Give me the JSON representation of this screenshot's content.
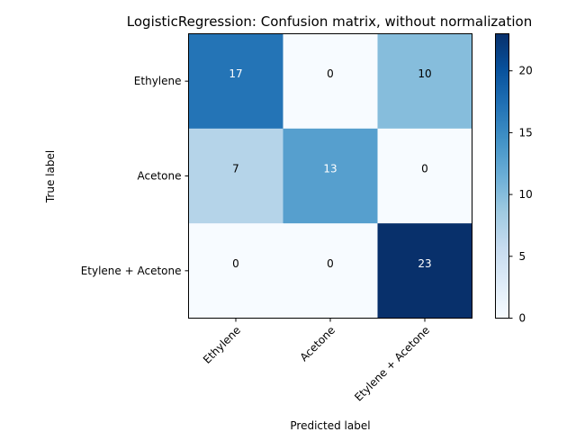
{
  "chart_data": {
    "type": "heatmap",
    "title": "LogisticRegression: Confusion matrix, without normalization",
    "xlabel": "Predicted label",
    "ylabel": "True label",
    "row_labels": [
      "Ethylene",
      "Acetone",
      "Etylene + Acetone"
    ],
    "col_labels": [
      "Ethylene",
      "Acetone",
      "Etylene + Acetone"
    ],
    "values": [
      [
        17,
        0,
        10
      ],
      [
        7,
        13,
        0
      ],
      [
        0,
        0,
        23
      ]
    ],
    "colorbar": {
      "min": 0,
      "max": 23,
      "ticks": [
        0,
        5,
        10,
        15,
        20
      ],
      "colormap": "Blues"
    },
    "text_colors": {
      "dark_cell": "#ffffff",
      "light_cell": "#000000"
    }
  }
}
